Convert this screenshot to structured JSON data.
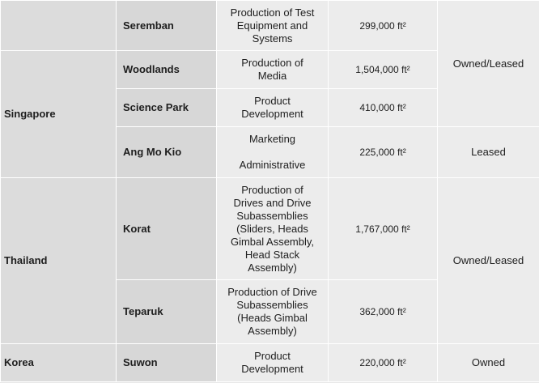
{
  "rows": [
    {
      "country": "",
      "city": "Seremban",
      "function_lines": [
        "Production of Test",
        "Equipment and",
        "Systems"
      ],
      "area": "299,000 ft²",
      "ownership": "Owned/Leased"
    },
    {
      "country": "Singapore",
      "city": "Woodlands",
      "function_lines": [
        "Production of",
        "Media"
      ],
      "area": "1,504,000 ft²"
    },
    {
      "city": "Science Park",
      "function_lines": [
        "Product",
        "Development"
      ],
      "area": "410,000 ft²"
    },
    {
      "city": "Ang Mo Kio",
      "function_lines": [
        "Marketing",
        "Administrative"
      ],
      "area": "225,000 ft²",
      "ownership": "Leased"
    },
    {
      "country": "Thailand",
      "city": "Korat",
      "function_lines": [
        "Production of",
        "Drives and Drive",
        "Subassemblies",
        "(Sliders, Heads",
        "Gimbal Assembly,",
        "Head Stack",
        "Assembly)"
      ],
      "area": "1,767,000 ft²",
      "ownership": "Owned/Leased"
    },
    {
      "city": "Teparuk",
      "function_lines": [
        "Production of Drive",
        "Subassemblies",
        "(Heads Gimbal",
        "Assembly)"
      ],
      "area": "362,000 ft²"
    },
    {
      "country": "Korea",
      "city": "Suwon",
      "function_lines": [
        "Product",
        "Development"
      ],
      "area": "220,000 ft²",
      "ownership": "Owned"
    }
  ]
}
